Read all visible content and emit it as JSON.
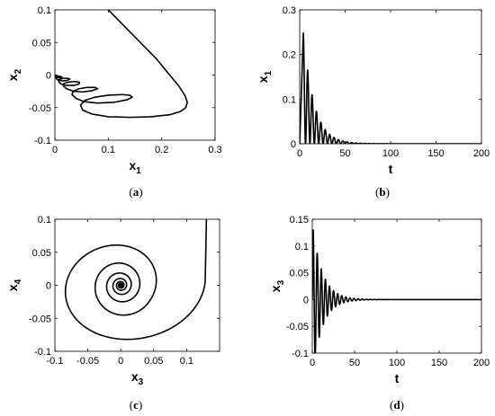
{
  "chart_data": [
    {
      "type": "line",
      "caption": "(a)",
      "xlabel": {
        "base": "x",
        "sub": "1"
      },
      "ylabel": {
        "base": "x",
        "sub": "2"
      },
      "xlim": [
        0,
        0.3
      ],
      "ylim": [
        -0.1,
        0.1
      ],
      "xticks": [
        "0",
        "0.1",
        "0.2",
        "0.3"
      ],
      "yticks": [
        "-0.1",
        "-0.05",
        "0",
        "0.05",
        "0.1"
      ],
      "series": [
        {
          "x": [
            0.1,
            0.13,
            0.16,
            0.19,
            0.215,
            0.233,
            0.244,
            0.248,
            0.245,
            0.235,
            0.215,
            0.18,
            0.14,
            0.1,
            0.07,
            0.052,
            0.048,
            0.056,
            0.075,
            0.1,
            0.125,
            0.14,
            0.145,
            0.135,
            0.11,
            0.08,
            0.055,
            0.04,
            0.032,
            0.034,
            0.045,
            0.06,
            0.075,
            0.08,
            0.07,
            0.052,
            0.035,
            0.022,
            0.016,
            0.017,
            0.025,
            0.037,
            0.046,
            0.045,
            0.035,
            0.022,
            0.012,
            0.007,
            0.008,
            0.015,
            0.024,
            0.028,
            0.024,
            0.015,
            0.007,
            0.003,
            0.002,
            0.004,
            0.009,
            0.013,
            0.011,
            0.006,
            0.002,
            0
          ],
          "y": [
            0.1,
            0.075,
            0.05,
            0.025,
            0.0,
            -0.018,
            -0.032,
            -0.042,
            -0.05,
            -0.056,
            -0.061,
            -0.064,
            -0.065,
            -0.064,
            -0.06,
            -0.054,
            -0.046,
            -0.039,
            -0.034,
            -0.031,
            -0.03,
            -0.031,
            -0.034,
            -0.038,
            -0.042,
            -0.043,
            -0.041,
            -0.036,
            -0.03,
            -0.025,
            -0.021,
            -0.019,
            -0.019,
            -0.021,
            -0.024,
            -0.026,
            -0.025,
            -0.021,
            -0.017,
            -0.013,
            -0.011,
            -0.01,
            -0.011,
            -0.014,
            -0.016,
            -0.016,
            -0.014,
            -0.01,
            -0.007,
            -0.005,
            -0.005,
            -0.006,
            -0.008,
            -0.009,
            -0.008,
            -0.006,
            -0.004,
            -0.002,
            -0.002,
            -0.003,
            -0.004,
            -0.004,
            -0.002,
            0
          ]
        }
      ]
    },
    {
      "type": "line",
      "caption": "(b)",
      "xlabel": {
        "base": "t",
        "sub": ""
      },
      "ylabel": {
        "base": "x",
        "sub": "1"
      },
      "xlim": [
        0,
        200
      ],
      "ylim": [
        0,
        0.3
      ],
      "xticks": [
        "0",
        "50",
        "100",
        "150",
        "200"
      ],
      "yticks": [
        "0",
        "0.1",
        "0.2",
        "0.3"
      ],
      "series": [
        {
          "model": "damped",
          "amp": 0.248,
          "decay": 0.085,
          "omega": 1.3,
          "peak": 4.0,
          "offset": 0.0,
          "rectify": true,
          "t_end": 200
        }
      ]
    },
    {
      "type": "line",
      "caption": "(c)",
      "xlabel": {
        "base": "x",
        "sub": "3"
      },
      "ylabel": {
        "base": "x",
        "sub": "4"
      },
      "xlim": [
        -0.1,
        0.15
      ],
      "ylim": [
        -0.1,
        0.1
      ],
      "xticks": [
        "-0.1",
        "-0.05",
        "0",
        "0.05",
        "0.1"
      ],
      "yticks": [
        "-0.1",
        "-0.05",
        "0",
        "0.05",
        "0.1"
      ],
      "series": [
        {
          "model": "spiral",
          "start": [
            0.13,
            0.1
          ],
          "outer_r": 0.095,
          "decay": 0.27,
          "turns": 9
        }
      ]
    },
    {
      "type": "line",
      "caption": "(d)",
      "xlabel": {
        "base": "t",
        "sub": ""
      },
      "ylabel": {
        "base": "x",
        "sub": "3"
      },
      "xlim": [
        0,
        200
      ],
      "ylim": [
        -0.1,
        0.15
      ],
      "xticks": [
        "0",
        "50",
        "100",
        "150",
        "200"
      ],
      "yticks": [
        "-0.1",
        "-0.05",
        "0",
        "0.05",
        "0.1",
        "0.15"
      ],
      "series": [
        {
          "model": "damped",
          "amp": 0.13,
          "decay": 0.085,
          "omega": 1.3,
          "peak": 1.0,
          "offset": 0.0,
          "rectify": false,
          "t_end": 200
        }
      ]
    }
  ]
}
